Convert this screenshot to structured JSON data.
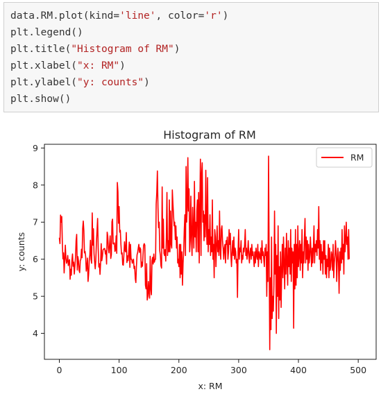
{
  "code": {
    "lines": [
      {
        "parts": [
          {
            "t": "data.RM.plot(kind=",
            "s": 0
          },
          {
            "t": "'line'",
            "s": 1
          },
          {
            "t": ", color=",
            "s": 0
          },
          {
            "t": "'r'",
            "s": 1
          },
          {
            "t": ")",
            "s": 0
          }
        ]
      },
      {
        "parts": [
          {
            "t": "plt.legend()",
            "s": 0
          }
        ]
      },
      {
        "parts": [
          {
            "t": "plt.title(",
            "s": 0
          },
          {
            "t": "\"Histogram of RM\"",
            "s": 1
          },
          {
            "t": ")",
            "s": 0
          }
        ]
      },
      {
        "parts": [
          {
            "t": "plt.xlabel(",
            "s": 0
          },
          {
            "t": "\"x: RM\"",
            "s": 1
          },
          {
            "t": ")",
            "s": 0
          }
        ]
      },
      {
        "parts": [
          {
            "t": "plt.ylabel(",
            "s": 0
          },
          {
            "t": "\"y: counts\"",
            "s": 1
          },
          {
            "t": ")",
            "s": 0
          }
        ]
      },
      {
        "parts": [
          {
            "t": "plt.show()",
            "s": 0
          }
        ]
      }
    ]
  },
  "chart_data": {
    "type": "line",
    "title": "Histogram of RM",
    "xlabel": "x: RM",
    "ylabel": "y: counts",
    "xlim": [
      -25,
      530
    ],
    "ylim": [
      3.3,
      9.1
    ],
    "xticks": [
      0,
      100,
      200,
      300,
      400,
      500
    ],
    "yticks": [
      4,
      5,
      6,
      7,
      8,
      9
    ],
    "legend_position": "top-right",
    "grid": false,
    "series": [
      {
        "name": "RM",
        "color": "#ff0000",
        "x_start": 0,
        "x_step": 1,
        "values": [
          6.58,
          6.42,
          7.19,
          7.0,
          7.15,
          6.43,
          6.01,
          6.17,
          5.63,
          6.0,
          6.38,
          6.01,
          5.89,
          5.95,
          6.1,
          5.83,
          5.94,
          5.99,
          5.46,
          5.73,
          5.57,
          5.97,
          6.14,
          5.81,
          5.92,
          5.6,
          5.81,
          6.05,
          6.5,
          6.67,
          5.71,
          6.07,
          5.95,
          5.7,
          5.64,
          5.96,
          6.0,
          6.27,
          6.04,
          6.82,
          7.03,
          6.77,
          6.17,
          6.21,
          6.07,
          5.68,
          5.79,
          6.03,
          5.4,
          5.6,
          5.96,
          6.12,
          6.51,
          6.0,
          5.89,
          7.25,
          6.38,
          6.82,
          6.15,
          5.93,
          5.74,
          5.97,
          6.46,
          6.76,
          7.1,
          6.29,
          5.79,
          5.88,
          5.59,
          5.89,
          6.42,
          5.96,
          6.07,
          6.25,
          6.27,
          6.29,
          6.28,
          6.14,
          6.23,
          5.87,
          6.73,
          6.62,
          6.3,
          6.17,
          6.39,
          6.63,
          6.02,
          6.12,
          7.01,
          7.08,
          6.42,
          6.41,
          6.44,
          6.21,
          6.25,
          6.63,
          6.16,
          8.07,
          7.82,
          6.97,
          7.42,
          6.73,
          6.78,
          6.4,
          6.14,
          6.17,
          5.85,
          5.84,
          6.13,
          6.47,
          6.23,
          6.2,
          6.72,
          5.91,
          6.09,
          5.96,
          6.17,
          6.46,
          5.78,
          6.4,
          6.0,
          6.0,
          5.89,
          5.95,
          6.0,
          5.75,
          5.81,
          5.48,
          5.37,
          5.82,
          6.12,
          6.18,
          6.3,
          6.4,
          6.18,
          6.31,
          6.27,
          5.78,
          5.92,
          5.81,
          6.12,
          6.38,
          6.42,
          6.38,
          5.3,
          5.2,
          5.88,
          4.9,
          5.0,
          5.4,
          5.1,
          4.95,
          6.08,
          5.2,
          5.04,
          5.96,
          6.05,
          5.87,
          6.14,
          5.92,
          5.99,
          6.0,
          7.49,
          7.8,
          8.38,
          7.4,
          6.85,
          7.0,
          6.23,
          6.1,
          5.82,
          5.76,
          7.95,
          6.3,
          7.08,
          6.16,
          6.1,
          6.26,
          5.95,
          6.6,
          7.8,
          6.1,
          6.5,
          6.2,
          7.6,
          6.2,
          7.3,
          6.4,
          6.3,
          7.87,
          7.5,
          7.2,
          6.9,
          7.0,
          6.53,
          6.9,
          6.3,
          6.6,
          5.9,
          6.0,
          5.8,
          6.4,
          5.5,
          6.4,
          5.6,
          6.2,
          5.3,
          5.9,
          6.2,
          6.8,
          7.2,
          6.1,
          8.5,
          7.0,
          7.4,
          8.74,
          7.3,
          7.9,
          6.2,
          6.5,
          7.7,
          6.6,
          6.1,
          7.4,
          6.8,
          6.3,
          8.1,
          6.6,
          7.0,
          6.2,
          7.3,
          7.6,
          6.2,
          7.8,
          5.9,
          7.4,
          8.7,
          6.1,
          8.3,
          8.6,
          7.0,
          7.3,
          6.5,
          7.2,
          6.6,
          8.4,
          7.0,
          6.4,
          8.2,
          6.2,
          6.8,
          6.4,
          7.2,
          6.1,
          6.6,
          6.2,
          7.6,
          6.0,
          6.4,
          5.5,
          6.8,
          6.6,
          5.8,
          6.4,
          6.9,
          6.2,
          6.5,
          6.1,
          7.3,
          6.3,
          6.0,
          6.8,
          6.9,
          6.5,
          6.3,
          6.0,
          6.3,
          6.4,
          5.9,
          6.5,
          6.4,
          6.6,
          6.0,
          6.2,
          6.8,
          6.4,
          6.7,
          6.1,
          5.8,
          6.2,
          6.5,
          6.1,
          6.6,
          6.0,
          6.3,
          6.2,
          5.9,
          6.0,
          4.97,
          6.2,
          6.8,
          6.0,
          6.3,
          6.2,
          6.5,
          5.9,
          6.1,
          6.0,
          6.3,
          6.2,
          6.4,
          6.8,
          6.1,
          6.3,
          6.0,
          6.2,
          6.5,
          6.1,
          5.9,
          6.2,
          6.3,
          6.0,
          6.4,
          6.1,
          6.2,
          6.0,
          5.8,
          6.2,
          5.9,
          6.3,
          6.1,
          6.0,
          6.4,
          5.8,
          6.2,
          6.1,
          6.0,
          6.3,
          5.9,
          6.5,
          6.1,
          6.2,
          6.0,
          5.8,
          6.3,
          6.1,
          6.4,
          5.0,
          6.2,
          5.4,
          8.78,
          6.1,
          3.56,
          5.5,
          4.1,
          6.6,
          4.4,
          5.0,
          4.6,
          5.3,
          7.3,
          5.6,
          6.4,
          4.0,
          6.1,
          5.0,
          6.9,
          4.4,
          5.8,
          4.9,
          6.2,
          4.7,
          5.7,
          6.4,
          5.5,
          6.6,
          5.9,
          5.2,
          6.3,
          5.6,
          6.7,
          5.9,
          5.3,
          6.5,
          5.8,
          6.3,
          5.6,
          6.8,
          5.4,
          6.3,
          5.9,
          6.2,
          4.14,
          6.4,
          5.2,
          6.8,
          5.3,
          6.4,
          5.5,
          6.9,
          5.8,
          6.1,
          6.5,
          5.7,
          6.4,
          5.9,
          6.8,
          5.5,
          6.2,
          5.9,
          6.6,
          7.1,
          5.9,
          6.6,
          6.0,
          6.5,
          5.7,
          6.4,
          5.9,
          6.1,
          6.6,
          6.2,
          5.8,
          6.3,
          5.9,
          6.3,
          6.9,
          5.9,
          6.4,
          6.2,
          6.5,
          6.1,
          6.8,
          6.3,
          7.42,
          6.0,
          6.5,
          5.7,
          6.4,
          5.9,
          6.2,
          5.6,
          6.5,
          6.0,
          6.5,
          5.6,
          6.1,
          5.5,
          6.0,
          5.8,
          6.4,
          5.5,
          6.3,
          5.7,
          5.8,
          6.2,
          6.1,
          5.7,
          6.4,
          5.5,
          5.9,
          6.1,
          6.5,
          6.2,
          5.4,
          6.0,
          6.3,
          5.9,
          5.08,
          6.2,
          5.7,
          6.3,
          5.9,
          6.8,
          6.0,
          6.4,
          5.6,
          6.9,
          6.2,
          6.5,
          7.0,
          6.4,
          6.6,
          6.0,
          6.8,
          6.0
        ]
      }
    ]
  }
}
